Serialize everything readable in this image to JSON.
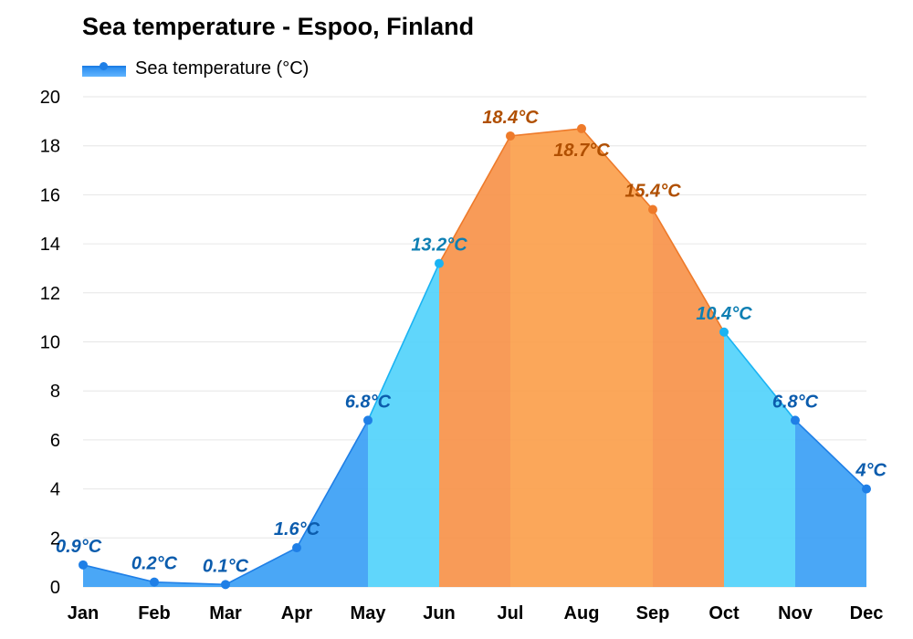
{
  "title": "Sea temperature - Espoo, Finland",
  "legend": {
    "label": "Sea temperature (°C)"
  },
  "chart_data": {
    "type": "area",
    "title": "Sea temperature - Espoo, Finland",
    "xlabel": "",
    "ylabel": "",
    "ylim": [
      0,
      20
    ],
    "yticks": [
      0,
      2,
      4,
      6,
      8,
      10,
      12,
      14,
      16,
      18,
      20
    ],
    "grid": true,
    "legend_position": "top-left",
    "categories": [
      "Jan",
      "Feb",
      "Mar",
      "Apr",
      "May",
      "Jun",
      "Jul",
      "Aug",
      "Sep",
      "Oct",
      "Nov",
      "Dec"
    ],
    "series": [
      {
        "name": "Sea temperature (°C)",
        "values": [
          0.9,
          0.2,
          0.1,
          1.6,
          6.8,
          13.2,
          18.4,
          18.7,
          15.4,
          10.4,
          6.8,
          4
        ],
        "labels": [
          "0.9°C",
          "0.2°C",
          "0.1°C",
          "1.6°C",
          "6.8°C",
          "13.2°C",
          "18.4°C",
          "18.7°C",
          "15.4°C",
          "10.4°C",
          "6.8°C",
          "4°C"
        ]
      }
    ],
    "colors": {
      "cold_fill": "#3b9ff5",
      "cool_fill": "#4dc8fa",
      "mild_fill": "#52d2fb",
      "warm_fill": "#f7924a",
      "hot_fill": "#fba04c",
      "cold_line": "#1f7fe6",
      "cool_line": "#1ab3f3",
      "warm_line": "#ee7a2a",
      "cold_label": "#0b5cad",
      "cool_label": "#0e7fb3",
      "warm_label": "#b04f00",
      "grid": "#e6e6e6"
    }
  }
}
